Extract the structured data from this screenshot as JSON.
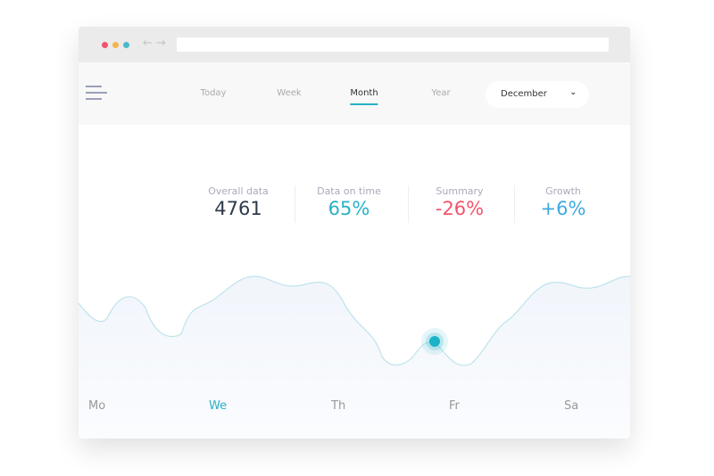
{
  "window": {
    "dots": [
      "#f0556b",
      "#f5b44a",
      "#4ab9c9"
    ]
  },
  "nav": {
    "tabs": [
      {
        "label": "Today"
      },
      {
        "label": "Week"
      },
      {
        "label": "Month",
        "active": true
      },
      {
        "label": "Year"
      }
    ],
    "month_select": "December"
  },
  "stats": [
    {
      "label": "Overall data",
      "value": "4761",
      "color": "#2e3a4d"
    },
    {
      "label": "Data on time",
      "value": "65%",
      "color": "#27b2c6"
    },
    {
      "label": "Summary",
      "value": "-26%",
      "color": "#f0556b"
    },
    {
      "label": "Growth",
      "value": "+6%",
      "color": "#3fa9e0"
    }
  ],
  "days": [
    "Mo",
    "We",
    "Th",
    "Fr",
    "Sa"
  ],
  "active_day": "We",
  "colors": {
    "accent": "#27b2c6"
  }
}
